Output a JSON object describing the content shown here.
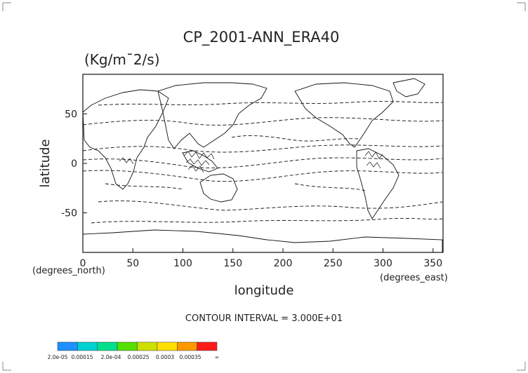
{
  "chart_data": {
    "type": "contour-map",
    "title": "CP_2001-ANN_ERA40",
    "subtitle": "(Kg/m¯2/s)",
    "xlabel": "longitude",
    "ylabel": "latitude",
    "x_unit_label": "(degrees_east)",
    "y_unit_label": "(degrees_north)",
    "xlim": [
      0,
      360
    ],
    "ylim": [
      -90,
      90
    ],
    "x_ticks": [
      0,
      50,
      100,
      150,
      200,
      250,
      300,
      350
    ],
    "y_ticks": [
      -50,
      0,
      50
    ],
    "contour_interval_text": "CONTOUR INTERVAL = 3.000E+01",
    "colorbar": {
      "colors": [
        "#1e90ff",
        "#00d2d2",
        "#00e08c",
        "#56e000",
        "#cde000",
        "#ffe000",
        "#ff9800",
        "#ff1a1a"
      ],
      "labels": [
        "2.0e-05",
        "0.00015",
        "2.0e-04",
        "0.00025",
        "0.0003",
        "0.00035",
        "∞"
      ]
    }
  }
}
